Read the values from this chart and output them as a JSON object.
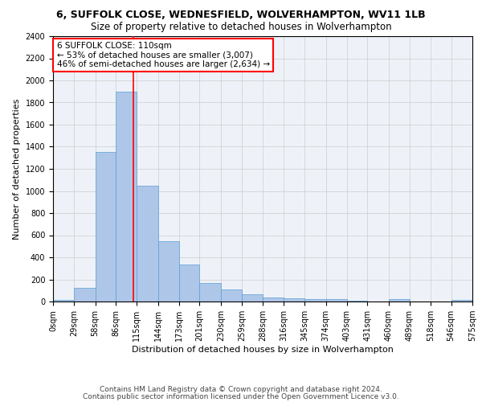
{
  "title": "6, SUFFOLK CLOSE, WEDNESFIELD, WOLVERHAMPTON, WV11 1LB",
  "subtitle": "Size of property relative to detached houses in Wolverhampton",
  "xlabel": "Distribution of detached houses by size in Wolverhampton",
  "ylabel": "Number of detached properties",
  "footer_line1": "Contains HM Land Registry data © Crown copyright and database right 2024.",
  "footer_line2": "Contains public sector information licensed under the Open Government Licence v3.0.",
  "bin_edges": [
    0,
    29,
    58,
    86,
    115,
    144,
    173,
    201,
    230,
    259,
    288,
    316,
    345,
    374,
    403,
    431,
    460,
    489,
    518,
    546,
    575
  ],
  "bin_labels": [
    "0sqm",
    "29sqm",
    "58sqm",
    "86sqm",
    "115sqm",
    "144sqm",
    "173sqm",
    "201sqm",
    "230sqm",
    "259sqm",
    "288sqm",
    "316sqm",
    "345sqm",
    "374sqm",
    "403sqm",
    "431sqm",
    "460sqm",
    "489sqm",
    "518sqm",
    "546sqm",
    "575sqm"
  ],
  "bar_heights": [
    15,
    125,
    1350,
    1900,
    1045,
    545,
    335,
    170,
    110,
    65,
    40,
    30,
    25,
    20,
    5,
    0,
    20,
    0,
    0,
    15
  ],
  "bar_color": "#aec6e8",
  "bar_edge_color": "#5a9fd4",
  "property_line_x": 110,
  "property_line_color": "red",
  "annotation_line1": "6 SUFFOLK CLOSE: 110sqm",
  "annotation_line2": "← 53% of detached houses are smaller (3,007)",
  "annotation_line3": "46% of semi-detached houses are larger (2,634) →",
  "annotation_box_color": "white",
  "annotation_box_edge_color": "red",
  "ylim": [
    0,
    2400
  ],
  "yticks": [
    0,
    200,
    400,
    600,
    800,
    1000,
    1200,
    1400,
    1600,
    1800,
    2000,
    2200,
    2400
  ],
  "grid_color": "#cccccc",
  "bg_color": "#eef2f8",
  "title_fontsize": 9,
  "subtitle_fontsize": 8.5,
  "axis_label_fontsize": 8,
  "tick_fontsize": 7,
  "annotation_fontsize": 7.5,
  "footer_fontsize": 6.5
}
